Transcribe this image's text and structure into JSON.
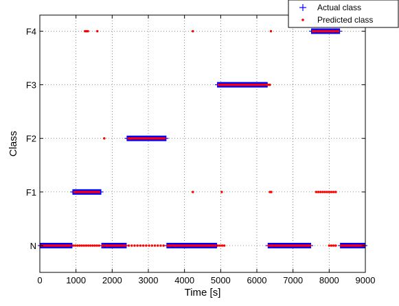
{
  "chart_data": {
    "type": "scatter",
    "xlabel": "Time [s]",
    "ylabel": "Class",
    "xlim": [
      0,
      9000
    ],
    "ylim": [
      -0.5,
      4.3
    ],
    "grid": true,
    "legend_placement": "top-right",
    "x_ticks": [
      0,
      1000,
      2000,
      3000,
      4000,
      5000,
      6000,
      7000,
      8000,
      9000
    ],
    "y_categories": [
      "N",
      "F1",
      "F2",
      "F3",
      "F4"
    ],
    "series": [
      {
        "name": "Actual class",
        "marker": "plus",
        "color": "#0000ff",
        "segments": [
          {
            "class": "N",
            "x_start": 0,
            "x_end": 900
          },
          {
            "class": "F1",
            "x_start": 900,
            "x_end": 1700
          },
          {
            "class": "N",
            "x_start": 1700,
            "x_end": 2400
          },
          {
            "class": "F2",
            "x_start": 2400,
            "x_end": 3500
          },
          {
            "class": "N",
            "x_start": 3500,
            "x_end": 4900
          },
          {
            "class": "F3",
            "x_start": 4900,
            "x_end": 6300
          },
          {
            "class": "N",
            "x_start": 6300,
            "x_end": 7500
          },
          {
            "class": "F4",
            "x_start": 7500,
            "x_end": 8300
          },
          {
            "class": "N",
            "x_start": 8300,
            "x_end": 9000
          }
        ]
      },
      {
        "name": "Predicted class",
        "marker": "dot",
        "color": "#ff0000",
        "segments": [
          {
            "class": "N",
            "x_start": 0,
            "x_end": 870
          },
          {
            "class": "F1",
            "x_start": 930,
            "x_end": 1670
          },
          {
            "class": "N",
            "x_start": 1700,
            "x_end": 2400
          },
          {
            "class": "F2",
            "x_start": 2420,
            "x_end": 3480
          },
          {
            "class": "N",
            "x_start": 3500,
            "x_end": 4880
          },
          {
            "class": "F3",
            "x_start": 4920,
            "x_end": 6300
          },
          {
            "class": "N",
            "x_start": 6300,
            "x_end": 7500
          },
          {
            "class": "F4",
            "x_start": 7520,
            "x_end": 8280
          },
          {
            "class": "N",
            "x_start": 8300,
            "x_end": 9000
          }
        ],
        "outliers": [
          {
            "class": "N",
            "x": [
              920,
              980,
              1040,
              1100,
              1160,
              1220,
              1280,
              1340,
              1400,
              1460,
              1520,
              1580,
              1640,
              2460,
              2540,
              2620,
              2700,
              2780,
              2860,
              2940,
              3020,
              3100,
              3180,
              3260,
              3340,
              3420,
              4920,
              4980,
              5040,
              5100,
              8000,
              8060,
              8120,
              8180
            ]
          },
          {
            "class": "F1",
            "x": [
              4230,
              5030,
              6360,
              6400,
              7640,
              7700,
              7760,
              7820,
              7880,
              7940,
              8000,
              8060,
              8120,
              8180
            ]
          },
          {
            "class": "F2",
            "x": [
              1780
            ]
          },
          {
            "class": "F3",
            "x": [
              6330,
              6360
            ]
          },
          {
            "class": "F4",
            "x": [
              1250,
              1290,
              1330,
              1590,
              4230,
              6390
            ]
          }
        ]
      }
    ]
  }
}
